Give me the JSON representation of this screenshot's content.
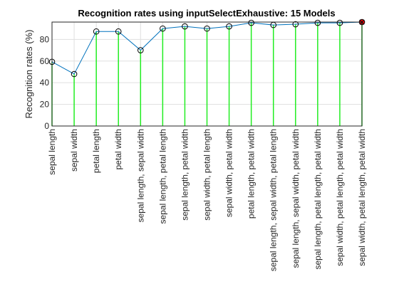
{
  "chart_data": {
    "type": "line",
    "title": "Recognition rates using inputSelectExhaustive: 15 Models",
    "xlabel": "",
    "ylabel": "Recognition rates (%)",
    "ylim": [
      0,
      96
    ],
    "yticks": [
      0,
      20,
      40,
      60,
      80
    ],
    "grid": true,
    "categories": [
      "sepal length",
      "sepal width",
      "petal length",
      "petal width",
      "sepal length, sepal width",
      "sepal length, petal length",
      "sepal length, petal width",
      "sepal width, petal length",
      "sepal width, petal width",
      "petal length, petal width",
      "sepal length, sepal width, petal length",
      "sepal length, sepal width, petal width",
      "sepal length, petal length, petal width",
      "sepal width, petal length, petal width",
      "sepal width, petal length, petal width"
    ],
    "values": [
      59.3,
      48.0,
      87.3,
      87.3,
      70.0,
      90.0,
      92.0,
      90.0,
      92.0,
      95.3,
      93.3,
      94.0,
      95.3,
      95.3,
      96.0
    ],
    "best_index": 14,
    "colors": {
      "line": "#0072bd",
      "stem": "#22ee22",
      "best_marker": "#ff0000",
      "grid": "#dfdfdf",
      "axis": "#262626"
    }
  }
}
